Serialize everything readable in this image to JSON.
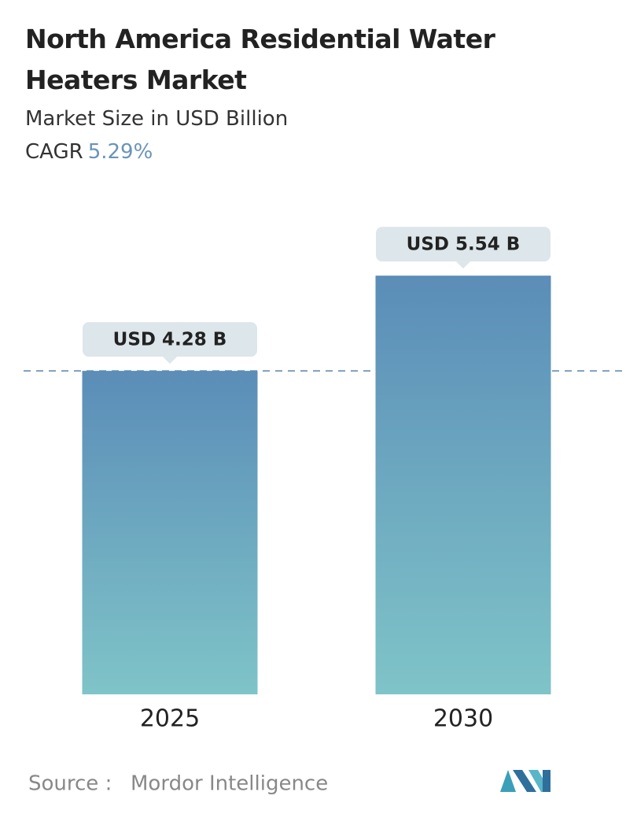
{
  "chart_data": {
    "type": "bar",
    "title": "North America Residential Water Heaters Market",
    "subtitle": "Market Size in USD Billion",
    "cagr_label": "CAGR",
    "cagr_value": "5.29%",
    "categories": [
      "2025",
      "2030"
    ],
    "values": [
      4.28,
      5.54
    ],
    "value_labels": [
      "USD 4.28 B",
      "USD 5.54 B"
    ],
    "ylim": [
      0,
      6
    ],
    "color_top": "#5b8db8",
    "color_bottom": "#7fc4c8",
    "source_label": "Source :",
    "source": "Mordor Intelligence"
  }
}
